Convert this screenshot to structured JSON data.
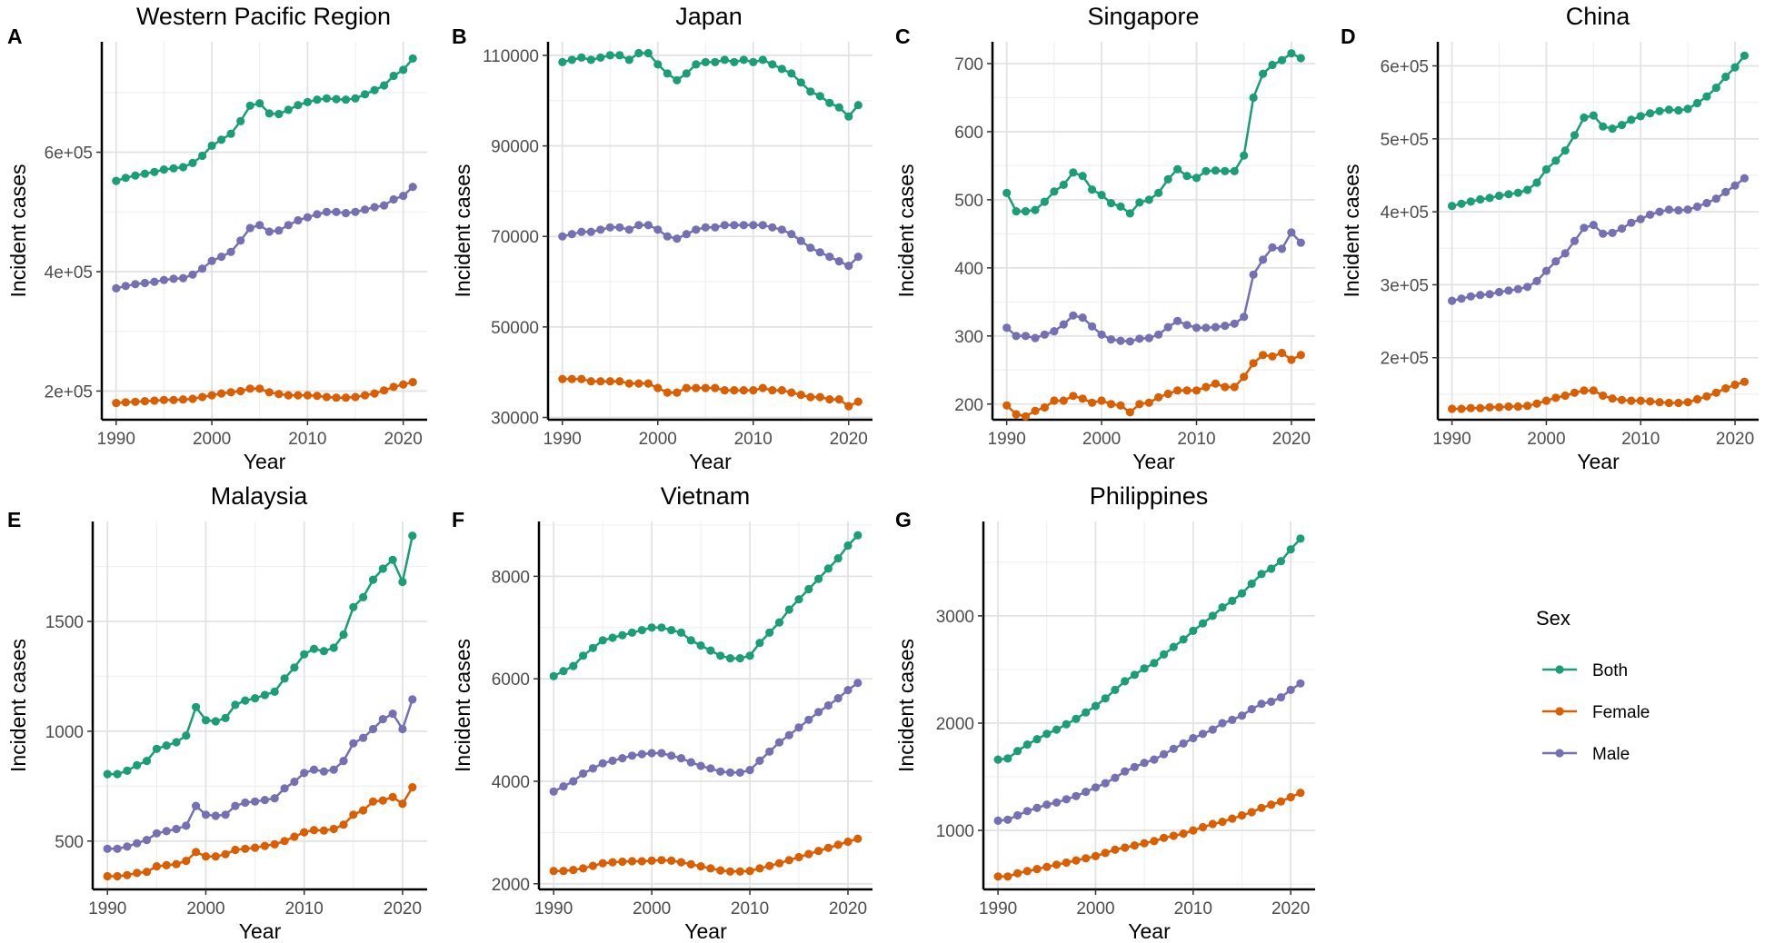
{
  "legend": {
    "title": "Sex",
    "entries": [
      {
        "name": "Both",
        "color": "#1b9e77"
      },
      {
        "name": "Female",
        "color": "#d95f02"
      },
      {
        "name": "Male",
        "color": "#7570b3"
      }
    ]
  },
  "chart_data": [
    {
      "type": "line",
      "label": "A",
      "title": "Western Pacific Region",
      "xlabel": "Year",
      "ylabel": "Incident cases",
      "xlim": [
        1988.5,
        2022.5
      ],
      "ylim": [
        152000,
        785000
      ],
      "xticks": [
        1990,
        2000,
        2010,
        2020
      ],
      "yticks": [
        200000,
        400000,
        600000
      ],
      "yticklabels": [
        "2e+05",
        "4e+05",
        "6e+05"
      ],
      "series": [
        {
          "name": "Both",
          "start_year": 1990,
          "values": [
            552000,
            557000,
            561000,
            564000,
            567000,
            571000,
            573000,
            575000,
            582000,
            594000,
            611000,
            621000,
            631000,
            652000,
            678000,
            682000,
            665000,
            664000,
            671000,
            679000,
            684000,
            688000,
            690000,
            689000,
            688000,
            690000,
            697000,
            704000,
            712000,
            728000,
            738000,
            757000
          ]
        },
        {
          "name": "Female",
          "start_year": 1990,
          "values": [
            180000,
            181000,
            182000,
            183000,
            184000,
            185000,
            185000,
            186000,
            187000,
            190000,
            193000,
            196000,
            198000,
            200000,
            204000,
            204000,
            198000,
            195000,
            193000,
            193000,
            193000,
            192000,
            190000,
            189000,
            189000,
            190000,
            193000,
            196000,
            201000,
            207000,
            211000,
            215000
          ]
        },
        {
          "name": "Male",
          "start_year": 1990,
          "values": [
            372000,
            376000,
            379000,
            381000,
            383000,
            386000,
            388000,
            389000,
            395000,
            405000,
            418000,
            425000,
            433000,
            452000,
            473000,
            478000,
            467000,
            469000,
            478000,
            486000,
            491000,
            496000,
            500000,
            500000,
            498000,
            500000,
            504000,
            508000,
            511000,
            521000,
            527000,
            542000
          ]
        }
      ]
    },
    {
      "type": "line",
      "label": "B",
      "title": "Japan",
      "xlabel": "Year",
      "ylabel": "Incident cases",
      "xlim": [
        1988.5,
        2022.5
      ],
      "ylim": [
        29500,
        113000
      ],
      "xticks": [
        1990,
        2000,
        2010,
        2020
      ],
      "yticks": [
        30000,
        50000,
        70000,
        90000,
        110000
      ],
      "yticklabels": [
        "30000",
        "50000",
        "70000",
        "90000",
        "110000"
      ],
      "series": [
        {
          "name": "Both",
          "start_year": 1990,
          "values": [
            108500,
            109000,
            109500,
            109000,
            109500,
            110000,
            110000,
            109000,
            110500,
            110500,
            108000,
            106000,
            104500,
            106000,
            108000,
            108500,
            108500,
            109000,
            108500,
            109000,
            108500,
            109000,
            108000,
            107000,
            106000,
            104000,
            102000,
            101000,
            99500,
            98500,
            96500,
            99000
          ]
        },
        {
          "name": "Female",
          "start_year": 1990,
          "values": [
            38500,
            38500,
            38500,
            38000,
            38000,
            38000,
            38000,
            37500,
            37500,
            37500,
            36500,
            35500,
            35500,
            36500,
            36500,
            36500,
            36500,
            36000,
            36000,
            36000,
            36000,
            36500,
            36000,
            36000,
            35500,
            35000,
            34500,
            34500,
            34000,
            34000,
            32500,
            33500
          ]
        },
        {
          "name": "Male",
          "start_year": 1990,
          "values": [
            70000,
            70500,
            71000,
            71000,
            71500,
            72000,
            72000,
            71500,
            72500,
            72500,
            71500,
            70000,
            69500,
            70500,
            71500,
            72000,
            72000,
            72500,
            72500,
            72500,
            72500,
            72500,
            72000,
            71500,
            70500,
            69000,
            67500,
            66500,
            65500,
            64500,
            63500,
            65500
          ]
        }
      ]
    },
    {
      "type": "line",
      "label": "C",
      "title": "Singapore",
      "xlabel": "Year",
      "ylabel": "Incident cases",
      "xlim": [
        1988.5,
        2022.5
      ],
      "ylim": [
        177,
        732
      ],
      "xticks": [
        1990,
        2000,
        2010,
        2020
      ],
      "yticks": [
        200,
        300,
        400,
        500,
        600,
        700
      ],
      "yticklabels": [
        "200",
        "300",
        "400",
        "500",
        "600",
        "700"
      ],
      "series": [
        {
          "name": "Both",
          "start_year": 1990,
          "values": [
            510,
            483,
            483,
            485,
            497,
            512,
            522,
            540,
            535,
            515,
            507,
            495,
            490,
            480,
            496,
            500,
            510,
            530,
            545,
            535,
            532,
            542,
            543,
            542,
            542,
            565,
            650,
            685,
            698,
            705,
            715,
            708
          ]
        },
        {
          "name": "Female",
          "start_year": 1990,
          "values": [
            198,
            185,
            182,
            190,
            195,
            205,
            205,
            212,
            208,
            202,
            205,
            200,
            198,
            188,
            200,
            202,
            210,
            215,
            220,
            220,
            220,
            225,
            230,
            225,
            225,
            240,
            260,
            272,
            270,
            275,
            265,
            272
          ]
        },
        {
          "name": "Male",
          "start_year": 1990,
          "values": [
            312,
            300,
            300,
            297,
            302,
            307,
            317,
            330,
            327,
            314,
            302,
            295,
            293,
            292,
            296,
            297,
            302,
            313,
            322,
            316,
            312,
            312,
            313,
            315,
            318,
            328,
            390,
            412,
            430,
            428,
            452,
            437
          ]
        }
      ]
    },
    {
      "type": "line",
      "label": "D",
      "title": "China",
      "xlabel": "Year",
      "ylabel": "Incident cases",
      "xlim": [
        1988.5,
        2022.5
      ],
      "ylim": [
        115000,
        633000
      ],
      "xticks": [
        1990,
        2000,
        2010,
        2020
      ],
      "yticks": [
        200000,
        300000,
        400000,
        500000,
        600000
      ],
      "yticklabels": [
        "2e+05",
        "3e+05",
        "4e+05",
        "5e+05",
        "6e+05"
      ],
      "series": [
        {
          "name": "Both",
          "start_year": 1990,
          "values": [
            408000,
            411000,
            414000,
            417000,
            419000,
            422000,
            424000,
            426000,
            430000,
            440000,
            458000,
            470000,
            484000,
            505000,
            529000,
            532000,
            517000,
            514000,
            519000,
            526000,
            531000,
            535000,
            538000,
            540000,
            539000,
            541000,
            549000,
            558000,
            570000,
            585000,
            598000,
            614000
          ]
        },
        {
          "name": "Female",
          "start_year": 1990,
          "values": [
            130000,
            130000,
            131000,
            131000,
            132000,
            132000,
            133000,
            133000,
            134000,
            137000,
            141000,
            145000,
            148000,
            152000,
            155000,
            155000,
            148000,
            144000,
            142000,
            141000,
            141000,
            140000,
            139000,
            138000,
            138000,
            139000,
            143000,
            147000,
            152000,
            158000,
            163000,
            167000
          ]
        },
        {
          "name": "Male",
          "start_year": 1990,
          "values": [
            278000,
            281000,
            284000,
            286000,
            287000,
            290000,
            292000,
            294000,
            297000,
            305000,
            319000,
            332000,
            343000,
            360000,
            378000,
            382000,
            370000,
            371000,
            377000,
            385000,
            390000,
            396000,
            400000,
            403000,
            402000,
            403000,
            407000,
            412000,
            418000,
            427000,
            436000,
            446000
          ]
        }
      ]
    },
    {
      "type": "line",
      "label": "E",
      "title": "Malaysia",
      "xlabel": "Year",
      "ylabel": "Incident cases",
      "xlim": [
        1988.5,
        2022.5
      ],
      "ylim": [
        280,
        1955
      ],
      "xticks": [
        1990,
        2000,
        2010,
        2020
      ],
      "yticks": [
        500,
        1000,
        1500
      ],
      "yticklabels": [
        "500",
        "1000",
        "1500"
      ],
      "series": [
        {
          "name": "Both",
          "start_year": 1990,
          "values": [
            805,
            805,
            820,
            845,
            865,
            920,
            935,
            950,
            980,
            1110,
            1050,
            1045,
            1060,
            1120,
            1140,
            1150,
            1165,
            1180,
            1240,
            1290,
            1350,
            1375,
            1365,
            1380,
            1440,
            1565,
            1610,
            1690,
            1740,
            1780,
            1680,
            1890
          ]
        },
        {
          "name": "Female",
          "start_year": 1990,
          "values": [
            340,
            340,
            345,
            355,
            360,
            385,
            390,
            395,
            410,
            450,
            430,
            430,
            440,
            460,
            465,
            470,
            478,
            485,
            500,
            520,
            540,
            550,
            548,
            555,
            575,
            620,
            640,
            680,
            685,
            700,
            670,
            745
          ]
        },
        {
          "name": "Male",
          "start_year": 1990,
          "values": [
            465,
            465,
            475,
            490,
            505,
            535,
            545,
            555,
            570,
            660,
            620,
            615,
            620,
            660,
            675,
            680,
            687,
            695,
            740,
            770,
            810,
            825,
            817,
            825,
            865,
            945,
            970,
            1010,
            1055,
            1080,
            1010,
            1145
          ]
        }
      ]
    },
    {
      "type": "line",
      "label": "F",
      "title": "Vietnam",
      "xlabel": "Year",
      "ylabel": "Incident cases",
      "xlim": [
        1988.5,
        2022.5
      ],
      "ylim": [
        1890,
        9070
      ],
      "xticks": [
        1990,
        2000,
        2010,
        2020
      ],
      "yticks": [
        2000,
        4000,
        6000,
        8000
      ],
      "yticklabels": [
        "2000",
        "4000",
        "6000",
        "8000"
      ],
      "series": [
        {
          "name": "Both",
          "start_year": 1990,
          "values": [
            6050,
            6150,
            6250,
            6450,
            6600,
            6750,
            6800,
            6850,
            6900,
            6950,
            7000,
            7000,
            6950,
            6900,
            6750,
            6650,
            6550,
            6450,
            6400,
            6400,
            6450,
            6700,
            6900,
            7100,
            7350,
            7550,
            7750,
            7950,
            8150,
            8350,
            8600,
            8800
          ]
        },
        {
          "name": "Female",
          "start_year": 1990,
          "values": [
            2250,
            2250,
            2270,
            2300,
            2350,
            2400,
            2420,
            2430,
            2440,
            2440,
            2450,
            2460,
            2450,
            2420,
            2380,
            2340,
            2300,
            2260,
            2240,
            2240,
            2250,
            2300,
            2350,
            2400,
            2460,
            2520,
            2580,
            2640,
            2700,
            2760,
            2820,
            2880
          ]
        },
        {
          "name": "Male",
          "start_year": 1990,
          "values": [
            3800,
            3900,
            4000,
            4150,
            4250,
            4350,
            4400,
            4450,
            4500,
            4530,
            4550,
            4550,
            4500,
            4450,
            4370,
            4300,
            4250,
            4190,
            4170,
            4170,
            4220,
            4400,
            4580,
            4760,
            4900,
            5050,
            5200,
            5350,
            5480,
            5620,
            5780,
            5920
          ]
        }
      ]
    },
    {
      "type": "line",
      "label": "G",
      "title": "Philippines",
      "xlabel": "Year",
      "ylabel": "Incident cases",
      "xlim": [
        1988.5,
        2022.5
      ],
      "ylim": [
        450,
        3880
      ],
      "xticks": [
        1990,
        2000,
        2010,
        2020
      ],
      "yticks": [
        1000,
        2000,
        3000
      ],
      "yticklabels": [
        "1000",
        "2000",
        "3000"
      ],
      "series": [
        {
          "name": "Both",
          "start_year": 1990,
          "values": [
            1660,
            1670,
            1740,
            1800,
            1850,
            1900,
            1940,
            1990,
            2040,
            2100,
            2160,
            2230,
            2310,
            2390,
            2450,
            2510,
            2560,
            2640,
            2710,
            2780,
            2860,
            2930,
            3000,
            3080,
            3140,
            3210,
            3300,
            3390,
            3440,
            3510,
            3620,
            3720
          ]
        },
        {
          "name": "Female",
          "start_year": 1990,
          "values": [
            570,
            570,
            600,
            620,
            640,
            660,
            680,
            700,
            720,
            740,
            760,
            790,
            820,
            840,
            860,
            880,
            900,
            930,
            950,
            970,
            1000,
            1030,
            1060,
            1080,
            1110,
            1140,
            1170,
            1210,
            1240,
            1270,
            1310,
            1350
          ]
        },
        {
          "name": "Male",
          "start_year": 1990,
          "values": [
            1090,
            1100,
            1140,
            1180,
            1210,
            1240,
            1260,
            1290,
            1320,
            1360,
            1400,
            1440,
            1490,
            1550,
            1590,
            1630,
            1660,
            1710,
            1760,
            1810,
            1860,
            1900,
            1940,
            2000,
            2030,
            2070,
            2130,
            2180,
            2200,
            2240,
            2310,
            2370
          ]
        }
      ]
    }
  ]
}
